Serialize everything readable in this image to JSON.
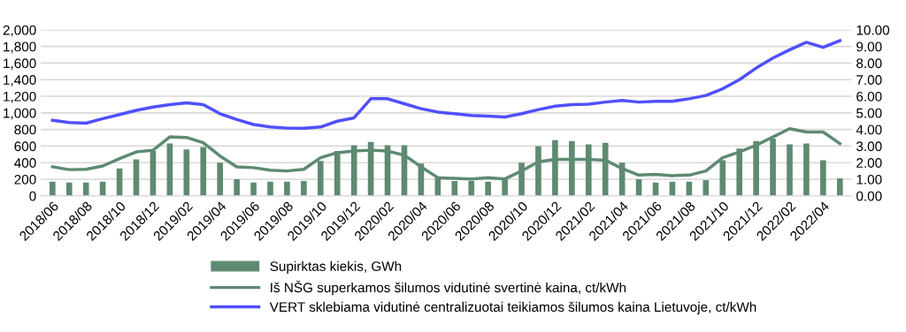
{
  "chart_data": {
    "type": "bar",
    "categories": [
      "2018/06",
      null,
      "2018/08",
      null,
      "2018/10",
      null,
      "2018/12",
      null,
      "2019/02",
      null,
      "2019/04",
      null,
      "2019/06",
      null,
      "2019/08",
      null,
      "2019/10",
      null,
      "2019/12",
      null,
      "2020/02",
      null,
      "2020/04",
      null,
      "2020/06",
      null,
      "2020/08",
      null,
      "2020/10",
      null,
      "2020/12",
      null,
      "2021/02",
      null,
      "2021/04",
      null,
      "2021/06",
      null,
      "2021/08",
      null,
      "2021/10",
      null,
      "2021/12",
      null,
      "2022/02",
      null,
      "2022/04",
      null
    ],
    "series": [
      {
        "name": "Supirktas kiekis, GWh",
        "color": "#5e8a72",
        "values": [
          170,
          160,
          160,
          170,
          330,
          440,
          540,
          630,
          560,
          590,
          400,
          200,
          160,
          170,
          170,
          180,
          420,
          540,
          610,
          650,
          610,
          610,
          390,
          220,
          180,
          180,
          170,
          200,
          400,
          600,
          670,
          660,
          620,
          640,
          400,
          200,
          160,
          170,
          170,
          190,
          430,
          570,
          660,
          690,
          620,
          630,
          430,
          210
        ]
      },
      {
        "name": "Iš NŠG superkamos šilumos vidutinė svertinė kaina, ct/kWh",
        "type": "line",
        "axis": "y2",
        "color": "#5e8a72",
        "values": [
          1.75,
          1.58,
          1.6,
          1.8,
          2.25,
          2.65,
          2.75,
          3.55,
          3.52,
          3.2,
          2.4,
          1.75,
          1.7,
          1.55,
          1.5,
          1.6,
          2.3,
          2.6,
          2.7,
          2.75,
          2.7,
          2.45,
          1.75,
          1.1,
          1.05,
          1.02,
          1.1,
          1.02,
          1.5,
          2.05,
          2.2,
          2.2,
          2.2,
          2.15,
          1.65,
          1.25,
          1.3,
          1.22,
          1.25,
          1.5,
          2.3,
          2.65,
          3.05,
          3.55,
          4.05,
          3.85,
          3.85,
          3.15
        ]
      },
      {
        "name": "VERT sklebiama vidutinė centralizuotai teikiamos šilumos kaina Lietuvoje, ct/kWh",
        "type": "line",
        "axis": "y2",
        "color": "#5050ff",
        "values": [
          4.55,
          4.42,
          4.38,
          4.65,
          4.9,
          5.15,
          5.35,
          5.5,
          5.6,
          5.5,
          4.95,
          4.6,
          4.3,
          4.15,
          4.08,
          4.07,
          4.15,
          4.5,
          4.7,
          5.85,
          5.85,
          5.55,
          5.25,
          5.05,
          4.95,
          4.85,
          4.8,
          4.75,
          4.95,
          5.2,
          5.4,
          5.5,
          5.52,
          5.65,
          5.75,
          5.65,
          5.7,
          5.7,
          5.85,
          6.05,
          6.45,
          7.0,
          7.7,
          8.3,
          8.8,
          9.25,
          8.95,
          9.35
        ]
      }
    ],
    "ylim": [
      0,
      2000
    ],
    "yticks": [
      {
        "value": 0,
        "label": "0"
      },
      {
        "value": 200,
        "label": "200"
      },
      {
        "value": 400,
        "label": "400"
      },
      {
        "value": 600,
        "label": "600"
      },
      {
        "value": 800,
        "label": "800"
      },
      {
        "value": 1000,
        "label": "1,000"
      },
      {
        "value": 1200,
        "label": "1,200"
      },
      {
        "value": 1400,
        "label": "1,400"
      },
      {
        "value": 1600,
        "label": "1,600"
      },
      {
        "value": 1800,
        "label": "1,800"
      },
      {
        "value": 2000,
        "label": "2,000"
      }
    ],
    "y2lim": [
      0,
      10
    ],
    "y2ticks": [
      {
        "value": 0,
        "label": "0.00"
      },
      {
        "value": 1,
        "label": "1.00"
      },
      {
        "value": 2,
        "label": "2.00"
      },
      {
        "value": 3,
        "label": "3.00"
      },
      {
        "value": 4,
        "label": "4.00"
      },
      {
        "value": 5,
        "label": "5.00"
      },
      {
        "value": 6,
        "label": "6.00"
      },
      {
        "value": 7,
        "label": "7.00"
      },
      {
        "value": 8,
        "label": "8.00"
      },
      {
        "value": 9,
        "label": "9.00"
      },
      {
        "value": 10,
        "label": "10.00"
      }
    ],
    "grid": "y",
    "legend": "bottom"
  }
}
